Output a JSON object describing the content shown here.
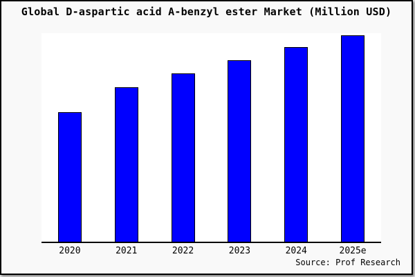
{
  "chart_data": {
    "type": "bar",
    "title": "Global D-aspartic acid A-benzyl ester Market (Million USD)",
    "categories": [
      "2020",
      "2021",
      "2022",
      "2023",
      "2024",
      "2025e"
    ],
    "values": [
      62.7,
      74.8,
      81.4,
      87.8,
      94.2,
      100
    ],
    "xlabel": "",
    "ylabel": "",
    "ylim": [
      0,
      101
    ],
    "grid": false,
    "legend": false,
    "bar_color": "#0000ff",
    "bar_edge_color": "#000000",
    "axis_color": "#000000"
  },
  "source": "Source: Prof Research",
  "colors": {
    "page_bg": "#f9f9f9",
    "plot_bg": "#ffffff",
    "frame_border": "#000000",
    "text": "#000000"
  }
}
